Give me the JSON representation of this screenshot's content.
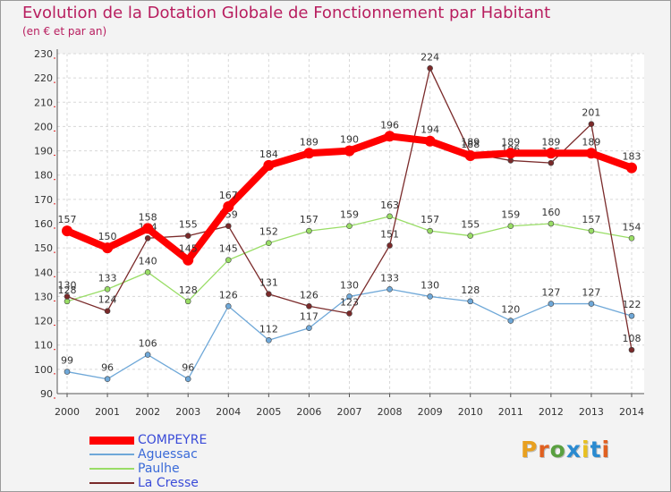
{
  "title": "Evolution de la Dotation Globale de Fonctionnement par Habitant",
  "subtitle": "(en € et par an)",
  "logo": {
    "text": "Proxiti",
    "letter_colors": [
      "#e8a020",
      "#e06020",
      "#5aa040",
      "#2a8ad0",
      "#e8c020",
      "#2a8ad0",
      "#e06020"
    ]
  },
  "chart_data": {
    "type": "line",
    "x": [
      "2000",
      "2001",
      "2002",
      "2003",
      "2004",
      "2005",
      "2006",
      "2007",
      "2008",
      "2009",
      "2010",
      "2011",
      "2012",
      "2013",
      "2014"
    ],
    "ylim": [
      90,
      230
    ],
    "yticks": [
      90,
      100,
      110,
      120,
      130,
      140,
      150,
      160,
      170,
      180,
      190,
      200,
      210,
      220,
      230
    ],
    "grid": true,
    "series": [
      {
        "name": "COMPEYRE",
        "color": "#ff0000",
        "values": [
          157,
          150,
          158,
          145,
          167,
          184,
          189,
          190,
          196,
          194,
          188,
          189,
          189,
          189,
          183
        ]
      },
      {
        "name": "Aguessac",
        "color": "#6fa8d8",
        "values": [
          99,
          96,
          106,
          96,
          126,
          112,
          117,
          130,
          133,
          130,
          128,
          120,
          127,
          127,
          122
        ]
      },
      {
        "name": "Paulhe",
        "color": "#99dd66",
        "values": [
          128,
          133,
          140,
          128,
          145,
          152,
          157,
          159,
          163,
          157,
          155,
          159,
          160,
          157,
          154
        ]
      },
      {
        "name": "La Cresse",
        "color": "#7a2a2a",
        "values": [
          130,
          124,
          154,
          155,
          159,
          131,
          126,
          123,
          151,
          224,
          189,
          186,
          185,
          201,
          108
        ]
      }
    ]
  }
}
